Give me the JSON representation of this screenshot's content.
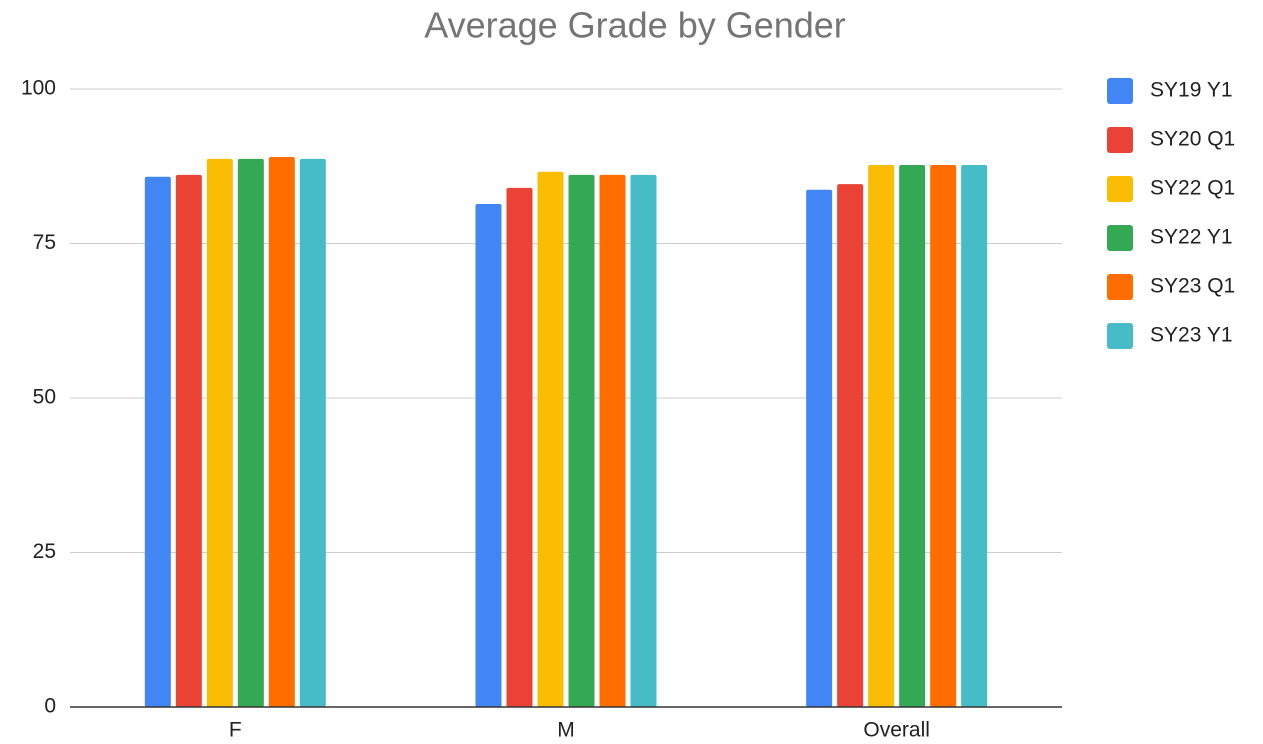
{
  "chart_data": {
    "type": "bar",
    "title": "Average Grade by Gender",
    "categories": [
      "F",
      "M",
      "Overall"
    ],
    "series": [
      {
        "name": "SY19 Y1",
        "color": "#4285f4",
        "values": [
          85.8,
          81.4,
          83.7
        ]
      },
      {
        "name": "SY20 Q1",
        "color": "#ea4335",
        "values": [
          86.1,
          84.0,
          84.6
        ]
      },
      {
        "name": "SY22 Q1",
        "color": "#fbbc04",
        "values": [
          88.7,
          86.6,
          87.7
        ]
      },
      {
        "name": "SY22 Y1",
        "color": "#34a853",
        "values": [
          88.7,
          86.1,
          87.7
        ]
      },
      {
        "name": "SY23 Q1",
        "color": "#ff6d01",
        "values": [
          89.0,
          86.1,
          87.7
        ]
      },
      {
        "name": "SY23 Y1",
        "color": "#46bdc6",
        "values": [
          88.7,
          86.1,
          87.7
        ]
      }
    ],
    "ylim": [
      0,
      100
    ],
    "yticks": [
      0,
      25,
      50,
      75,
      100
    ],
    "grid": true,
    "legend": "right"
  }
}
